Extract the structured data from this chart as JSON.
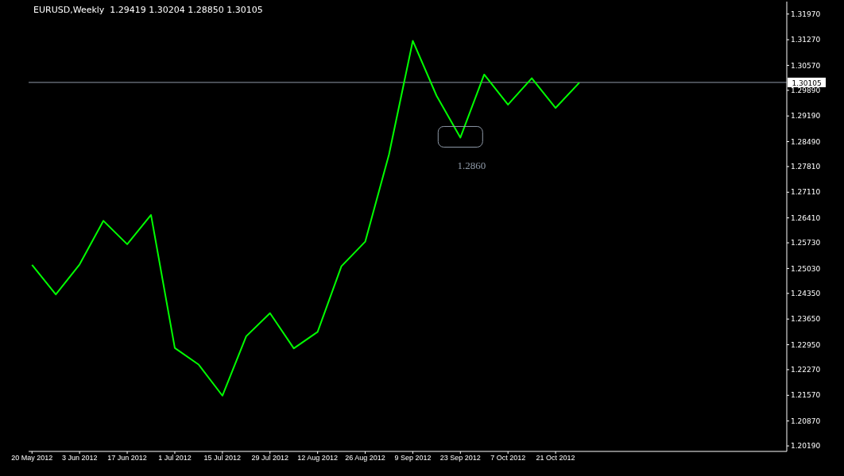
{
  "chart_data": {
    "type": "line",
    "title": "EURUSD,Weekly  1.29419 1.30204 1.28850 1.30105",
    "x": [
      "2012-05-20",
      "2012-05-27",
      "2012-06-03",
      "2012-06-10",
      "2012-06-17",
      "2012-06-24",
      "2012-07-01",
      "2012-07-08",
      "2012-07-15",
      "2012-07-22",
      "2012-07-29",
      "2012-08-05",
      "2012-08-12",
      "2012-08-19",
      "2012-08-26",
      "2012-09-02",
      "2012-09-09",
      "2012-09-16",
      "2012-09-23",
      "2012-09-30",
      "2012-10-07",
      "2012-10-14",
      "2012-10-21",
      "2012-10-28"
    ],
    "series": [
      {
        "color": "#00ff00",
        "values": [
          1.2513,
          1.2432,
          1.2514,
          1.2633,
          1.2569,
          1.2649,
          1.2286,
          1.2241,
          1.2156,
          1.2318,
          1.2381,
          1.2285,
          1.233,
          1.2509,
          1.2576,
          1.2814,
          1.3124,
          1.2974,
          1.286,
          1.3032,
          1.295,
          1.3022,
          1.2941,
          1.301
        ]
      }
    ],
    "xlim": [
      "2012-05-19",
      "2012-12-28"
    ],
    "xticks": [
      {
        "value": "2012-05-20",
        "label": "20 May 2012"
      },
      {
        "value": "2012-06-03",
        "label": "3 Jun 2012"
      },
      {
        "value": "2012-06-17",
        "label": "17 Jun 2012"
      },
      {
        "value": "2012-07-01",
        "label": "1 Jul 2012"
      },
      {
        "value": "2012-07-15",
        "label": "15 Jul 2012"
      },
      {
        "value": "2012-07-29",
        "label": "29 Jul 2012"
      },
      {
        "value": "2012-08-12",
        "label": "12 Aug 2012"
      },
      {
        "value": "2012-08-26",
        "label": "26 Aug 2012"
      },
      {
        "value": "2012-09-09",
        "label": "9 Sep 2012"
      },
      {
        "value": "2012-09-23",
        "label": "23 Sep 2012"
      },
      {
        "value": "2012-10-07",
        "label": "7 Oct 2012"
      },
      {
        "value": "2012-10-21",
        "label": "21 Oct 2012"
      }
    ],
    "ylim": [
      1.2004,
      1.3231
    ],
    "yticks": [
      {
        "value": 1.3197,
        "label": "1.31970"
      },
      {
        "value": 1.3127,
        "label": "1.31270"
      },
      {
        "value": 1.3057,
        "label": "1.30570"
      },
      {
        "value": 1.2989,
        "label": "1.29890"
      },
      {
        "value": 1.2919,
        "label": "1.29190"
      },
      {
        "value": 1.2849,
        "label": "1.28490"
      },
      {
        "value": 1.2781,
        "label": "1.27810"
      },
      {
        "value": 1.2711,
        "label": "1.27110"
      },
      {
        "value": 1.2641,
        "label": "1.26410"
      },
      {
        "value": 1.2573,
        "label": "1.25730"
      },
      {
        "value": 1.2503,
        "label": "1.25030"
      },
      {
        "value": 1.2435,
        "label": "1.24350"
      },
      {
        "value": 1.2365,
        "label": "1.23650"
      },
      {
        "value": 1.2295,
        "label": "1.22950"
      },
      {
        "value": 1.2227,
        "label": "1.22270"
      },
      {
        "value": 1.2157,
        "label": "1.21570"
      },
      {
        "value": 1.2087,
        "label": "1.20870"
      },
      {
        "value": 1.2019,
        "label": "1.20190"
      }
    ],
    "ref_lines": [
      {
        "axis": "y",
        "value": 1.30105,
        "label": "1.30105",
        "color": "#8f9aa8"
      }
    ],
    "annotations": [
      {
        "text": "1.2860",
        "x": "2012-09-23",
        "y": 1.286
      }
    ],
    "grid": false
  }
}
